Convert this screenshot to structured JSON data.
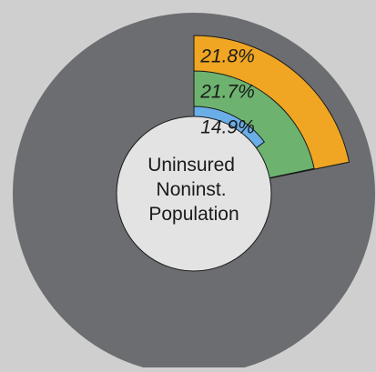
{
  "center_label": [
    "Uninsured",
    "Noninst.",
    "Population"
  ],
  "chart_data": {
    "type": "pie",
    "subtype": "nested-donut",
    "center_label": [
      "Uninsured",
      "Noninst.",
      "Population"
    ],
    "series": [
      {
        "label": "14.9%",
        "value": 14.9,
        "color": "#6aaee8"
      },
      {
        "label": "21.7%",
        "value": 21.7,
        "color": "#6db36f"
      },
      {
        "label": "21.8%",
        "value": 21.8,
        "color": "#f0a623"
      }
    ],
    "remainder_color": "#6b6d70",
    "slice_border_color": "#1a1a1a",
    "start_angle": "12 o'clock",
    "direction": "clockwise"
  }
}
